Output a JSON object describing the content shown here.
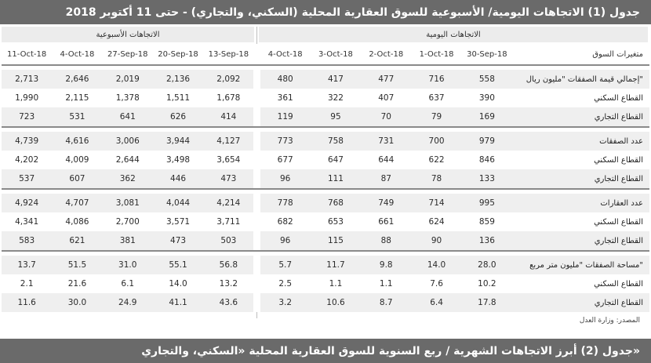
{
  "title1": "جدول (1) الاتجاهات اليومية/ الأسبوعية للسوق العقارية المحلية (السكني، والتجاري) - حتى 11 أكتوبر 2018",
  "groups": {
    "daily": "الاتجاهات اليومية",
    "weekly": "الاتجاهات الأسبوعية"
  },
  "columns": {
    "label": "متغيرات السوق",
    "daily": [
      "30-Sep-18",
      "1-Oct-18",
      "2-Oct-18",
      "3-Oct-18",
      "4-Oct-18"
    ],
    "weekly": [
      "13-Sep-18",
      "20-Sep-18",
      "27-Sep-18",
      "4-Oct-18",
      "11-Oct-18"
    ]
  },
  "sections": [
    {
      "rows": [
        {
          "label": "إجمالي قيمة الصفقات \"مليون ريال\"",
          "daily": [
            "558",
            "716",
            "477",
            "417",
            "480"
          ],
          "weekly": [
            "2,092",
            "2,136",
            "2,019",
            "2,646",
            "2,713"
          ]
        },
        {
          "label": "القطاع السكني",
          "daily": [
            "390",
            "637",
            "407",
            "322",
            "361"
          ],
          "weekly": [
            "1,678",
            "1,511",
            "1,378",
            "2,115",
            "1,990"
          ]
        },
        {
          "label": "القطاع التجاري",
          "daily": [
            "169",
            "79",
            "70",
            "95",
            "119"
          ],
          "weekly": [
            "414",
            "626",
            "641",
            "531",
            "723"
          ]
        }
      ]
    },
    {
      "rows": [
        {
          "label": "عدد الصفقات",
          "daily": [
            "979",
            "700",
            "731",
            "758",
            "773"
          ],
          "weekly": [
            "4,127",
            "3,944",
            "3,006",
            "4,616",
            "4,739"
          ]
        },
        {
          "label": "القطاع السكني",
          "daily": [
            "846",
            "622",
            "644",
            "647",
            "677"
          ],
          "weekly": [
            "3,654",
            "3,498",
            "2,644",
            "4,009",
            "4,202"
          ]
        },
        {
          "label": "القطاع التجاري",
          "daily": [
            "133",
            "78",
            "87",
            "111",
            "96"
          ],
          "weekly": [
            "473",
            "446",
            "362",
            "607",
            "537"
          ]
        }
      ]
    },
    {
      "rows": [
        {
          "label": "عدد العقارات",
          "daily": [
            "995",
            "714",
            "749",
            "768",
            "778"
          ],
          "weekly": [
            "4,214",
            "4,044",
            "3,081",
            "4,707",
            "4,924"
          ]
        },
        {
          "label": "القطاع السكني",
          "daily": [
            "859",
            "624",
            "661",
            "653",
            "682"
          ],
          "weekly": [
            "3,711",
            "3,571",
            "2,700",
            "4,086",
            "4,341"
          ]
        },
        {
          "label": "القطاع التجاري",
          "daily": [
            "136",
            "90",
            "88",
            "115",
            "96"
          ],
          "weekly": [
            "503",
            "473",
            "381",
            "621",
            "583"
          ]
        }
      ]
    },
    {
      "rows": [
        {
          "label": "مساحة الصفقات \"مليون متر مربع\"",
          "daily": [
            "28.0",
            "14.0",
            "9.8",
            "11.7",
            "5.7"
          ],
          "weekly": [
            "56.8",
            "55.1",
            "31.0",
            "51.5",
            "13.7"
          ]
        },
        {
          "label": "القطاع السكني",
          "daily": [
            "10.2",
            "7.6",
            "1.1",
            "1.1",
            "2.5"
          ],
          "weekly": [
            "13.2",
            "14.0",
            "6.1",
            "21.6",
            "2.1"
          ]
        },
        {
          "label": "القطاع التجاري",
          "daily": [
            "17.8",
            "6.4",
            "8.7",
            "10.6",
            "3.2"
          ],
          "weekly": [
            "43.6",
            "41.1",
            "24.9",
            "30.0",
            "11.6"
          ]
        }
      ]
    }
  ],
  "source": "المصدر: وزارة العدل",
  "title2": "جدول (2) أبرز الاتجاهات الشهرية / ربع السنوية للسوق العقارية المحلية «السكني، والتجاري»"
}
